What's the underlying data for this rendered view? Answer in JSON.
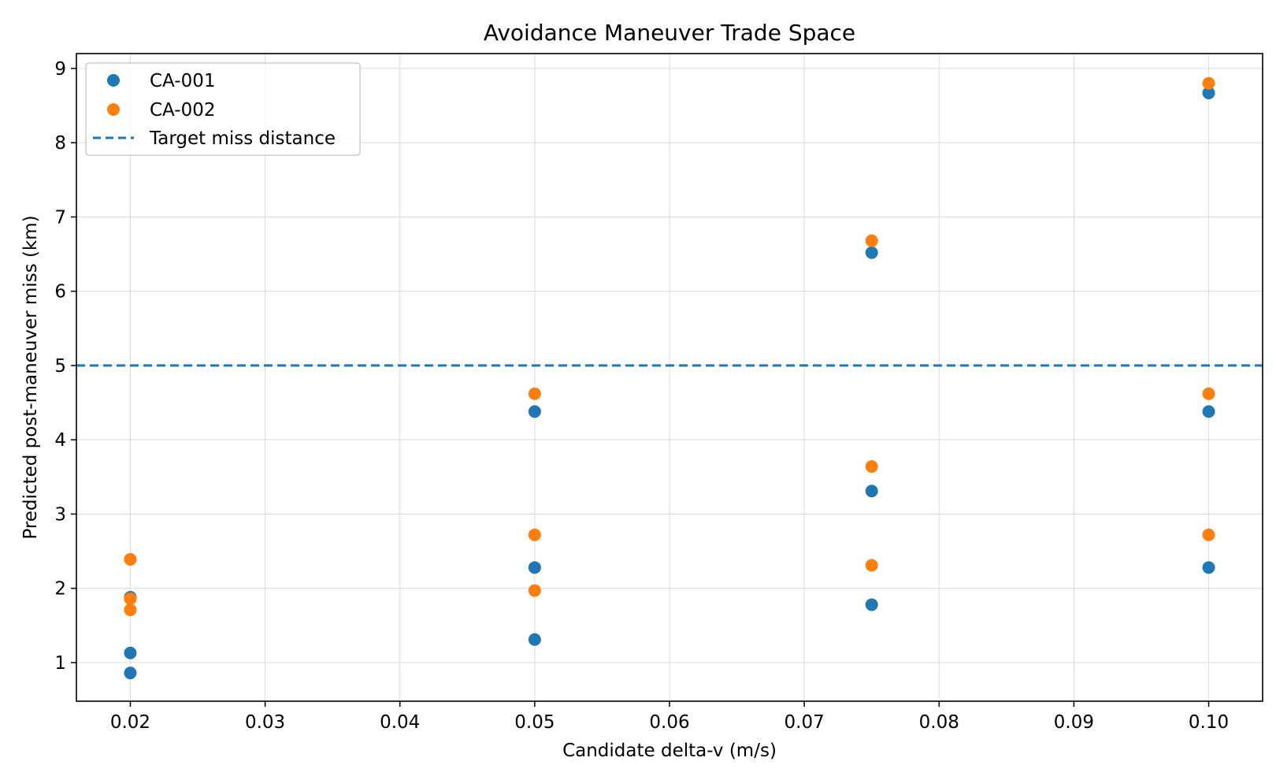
{
  "chart_data": {
    "type": "scatter",
    "title": "Avoidance Maneuver Trade Space",
    "xlabel": "Candidate delta-v (m/s)",
    "ylabel": "Predicted post-maneuver miss (km)",
    "xlim": [
      0.016,
      0.104
    ],
    "ylim": [
      0.48,
      9.2
    ],
    "xticks": [
      0.02,
      0.03,
      0.04,
      0.05,
      0.06,
      0.07,
      0.08,
      0.09,
      0.1
    ],
    "xtick_labels": [
      "0.02",
      "0.03",
      "0.04",
      "0.05",
      "0.06",
      "0.07",
      "0.08",
      "0.09",
      "0.10"
    ],
    "yticks": [
      1,
      2,
      3,
      4,
      5,
      6,
      7,
      8,
      9
    ],
    "ytick_labels": [
      "1",
      "2",
      "3",
      "4",
      "5",
      "6",
      "7",
      "8",
      "9"
    ],
    "grid": true,
    "legend_position": "top-left",
    "series": [
      {
        "name": "CA-001",
        "color": "#1f77b4",
        "points": [
          [
            0.02,
            0.86
          ],
          [
            0.02,
            1.13
          ],
          [
            0.02,
            1.88
          ],
          [
            0.05,
            1.31
          ],
          [
            0.05,
            2.28
          ],
          [
            0.05,
            4.38
          ],
          [
            0.075,
            1.78
          ],
          [
            0.075,
            3.31
          ],
          [
            0.075,
            6.52
          ],
          [
            0.1,
            2.28
          ],
          [
            0.1,
            4.38
          ],
          [
            0.1,
            8.67
          ]
        ]
      },
      {
        "name": "CA-002",
        "color": "#ff7f0e",
        "points": [
          [
            0.02,
            1.71
          ],
          [
            0.02,
            1.86
          ],
          [
            0.02,
            2.39
          ],
          [
            0.05,
            1.97
          ],
          [
            0.05,
            2.72
          ],
          [
            0.05,
            4.62
          ],
          [
            0.075,
            2.31
          ],
          [
            0.075,
            3.64
          ],
          [
            0.075,
            6.68
          ],
          [
            0.1,
            2.72
          ],
          [
            0.1,
            4.62
          ],
          [
            0.1,
            8.8
          ]
        ]
      }
    ],
    "reference_lines": [
      {
        "name": "Target miss distance",
        "orientation": "horizontal",
        "y": 5,
        "style": "dashed",
        "color": "#1f77b4"
      }
    ]
  }
}
